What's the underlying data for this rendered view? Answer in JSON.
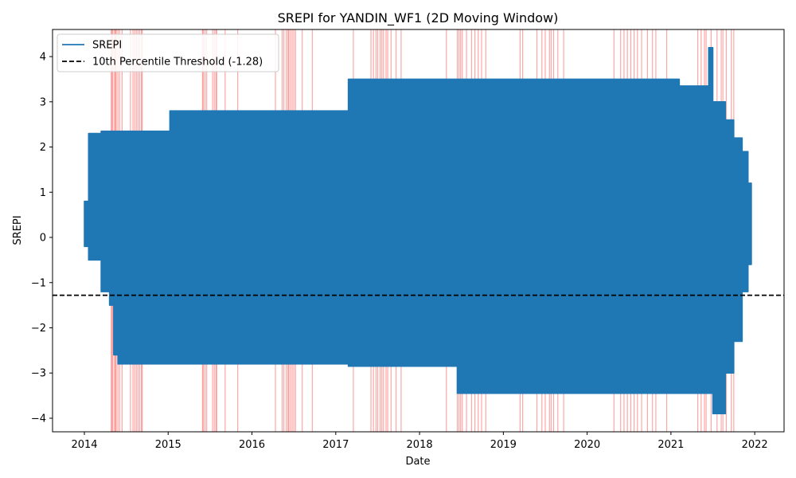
{
  "chart_data": {
    "type": "line",
    "title": "SREPI for YANDIN_WF1 (2D Moving Window)",
    "xlabel": "Date",
    "ylabel": "SREPI",
    "x_tick_labels": [
      "2014",
      "2015",
      "2016",
      "2017",
      "2018",
      "2019",
      "2020",
      "2021",
      "2022"
    ],
    "y_tick_labels": [
      "−4",
      "−3",
      "−2",
      "−1",
      "0",
      "1",
      "2",
      "3",
      "4"
    ],
    "xlim": [
      2013.62,
      2022.35
    ],
    "ylim": [
      -4.3,
      4.6
    ],
    "grid": false,
    "legend_position": "top-left",
    "colors": {
      "series": "#1f77b4",
      "threshold": "#000000",
      "drought_band": "#ff0000"
    },
    "series": [
      {
        "name": "SREPI",
        "envelope": [
          {
            "x": 2014.0,
            "min": -0.2,
            "max": 0.8
          },
          {
            "x": 2014.05,
            "min": -0.5,
            "max": 2.3
          },
          {
            "x": 2014.2,
            "min": -1.2,
            "max": 2.35
          },
          {
            "x": 2014.3,
            "min": -1.5,
            "max": 2.35
          },
          {
            "x": 2014.35,
            "min": -2.6,
            "max": 2.35
          },
          {
            "x": 2014.4,
            "min": -2.8,
            "max": 2.35
          },
          {
            "x": 2015.0,
            "min": -2.8,
            "max": 2.35
          },
          {
            "x": 2015.02,
            "min": -2.8,
            "max": 2.8
          },
          {
            "x": 2017.1,
            "min": -2.8,
            "max": 2.8
          },
          {
            "x": 2017.15,
            "min": -2.85,
            "max": 3.5
          },
          {
            "x": 2018.4,
            "min": -2.85,
            "max": 3.5
          },
          {
            "x": 2018.45,
            "min": -3.45,
            "max": 3.5
          },
          {
            "x": 2021.1,
            "min": -3.45,
            "max": 3.35
          },
          {
            "x": 2021.45,
            "min": -3.45,
            "max": 4.2
          },
          {
            "x": 2021.5,
            "min": -3.9,
            "max": 3.0
          },
          {
            "x": 2021.65,
            "min": -3.0,
            "max": 2.6
          },
          {
            "x": 2021.75,
            "min": -2.3,
            "max": 2.2
          },
          {
            "x": 2021.85,
            "min": -1.2,
            "max": 1.9
          },
          {
            "x": 2021.92,
            "min": -0.6,
            "max": 1.2
          },
          {
            "x": 2021.96,
            "min": -0.3,
            "max": 0.4
          }
        ]
      }
    ],
    "threshold": {
      "label": "10th Percentile Threshold (-1.28)",
      "value": -1.28
    },
    "drought_bands": [
      2014.32,
      2014.33,
      2014.34,
      2014.36,
      2014.37,
      2014.38,
      2014.4,
      2014.42,
      2014.45,
      2014.55,
      2014.58,
      2014.6,
      2014.62,
      2014.64,
      2014.66,
      2014.68,
      2014.69,
      2015.41,
      2015.42,
      2015.44,
      2015.46,
      2015.53,
      2015.55,
      2015.57,
      2015.58,
      2015.68,
      2015.83,
      2016.28,
      2016.36,
      2016.38,
      2016.41,
      2016.43,
      2016.44,
      2016.46,
      2016.48,
      2016.5,
      2016.52,
      2016.6,
      2016.72,
      2017.21,
      2017.42,
      2017.45,
      2017.48,
      2017.5,
      2017.53,
      2017.55,
      2017.57,
      2017.6,
      2017.62,
      2017.66,
      2017.72,
      2017.78,
      2018.32,
      2018.45,
      2018.47,
      2018.49,
      2018.51,
      2018.56,
      2018.62,
      2018.66,
      2018.7,
      2018.74,
      2018.79,
      2019.2,
      2019.23,
      2019.4,
      2019.46,
      2019.5,
      2019.55,
      2019.57,
      2019.6,
      2019.65,
      2019.72,
      2020.32,
      2020.4,
      2020.44,
      2020.48,
      2020.52,
      2020.56,
      2020.6,
      2020.65,
      2020.72,
      2020.78,
      2020.82,
      2020.95,
      2021.32,
      2021.36,
      2021.4,
      2021.42,
      2021.48,
      2021.55,
      2021.6,
      2021.62,
      2021.66,
      2021.72,
      2021.75
    ]
  }
}
